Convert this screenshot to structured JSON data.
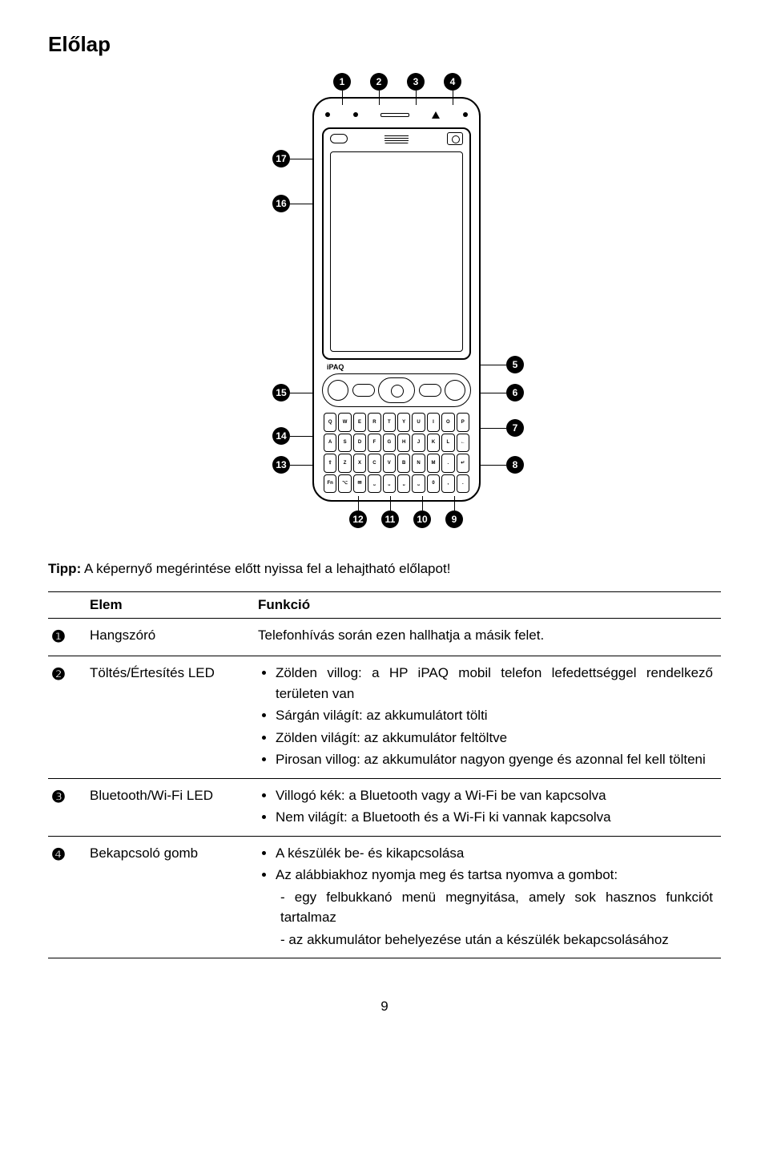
{
  "title": "Előlap",
  "tip_label": "Tipp:",
  "tip_text": " A képernyő megérintése előtt nyissa fel a lehajtható előlapot!",
  "table": {
    "headers": {
      "num": "",
      "elem": "Elem",
      "func": "Funkció"
    },
    "rows": [
      {
        "num": "❶",
        "elem": "Hangszóró",
        "func_text": "Telefonhívás során ezen hallhatja a másik felet."
      },
      {
        "num": "❷",
        "elem": "Töltés/Értesítés LED",
        "func_list": [
          "Zölden villog: a HP iPAQ mobil telefon lefedettséggel rendelkező területen van",
          "Sárgán világít: az akkumulátort tölti",
          "Zölden világít: az akkumulátor feltöltve",
          "Pirosan villog: az akkumulátor nagyon gyenge és azonnal fel kell tölteni"
        ]
      },
      {
        "num": "❸",
        "elem": "Bluetooth/Wi-Fi LED",
        "func_list": [
          "Villogó kék: a Bluetooth vagy a Wi-Fi be van kapcsolva",
          "Nem világít: a Bluetooth és a Wi-Fi ki vannak kapcsolva"
        ]
      },
      {
        "num": "❹",
        "elem": "Bekapcsoló gomb",
        "func_list": [
          "A készülék be- és kikapcsolása",
          "Az alábbiakhoz nyomja meg és tartsa nyomva a gombot:"
        ],
        "func_sublist": [
          "egy felbukkanó menü megnyitása, amely sok hasznos funkciót tartalmaz",
          "az akkumulátor behelyezése után a készülék bekapcsolásához"
        ]
      }
    ]
  },
  "page_number": "9",
  "callouts_top": [
    "1",
    "2",
    "3",
    "4"
  ],
  "callouts_right": [
    "5",
    "6",
    "7",
    "8"
  ],
  "callouts_bottom": [
    "12",
    "11",
    "10",
    "9"
  ],
  "callouts_left": [
    "17",
    "16",
    "15",
    "14",
    "13"
  ],
  "ipaq": "iPAQ",
  "diagram_colors": {
    "stroke": "#000000",
    "fill": "#ffffff"
  }
}
